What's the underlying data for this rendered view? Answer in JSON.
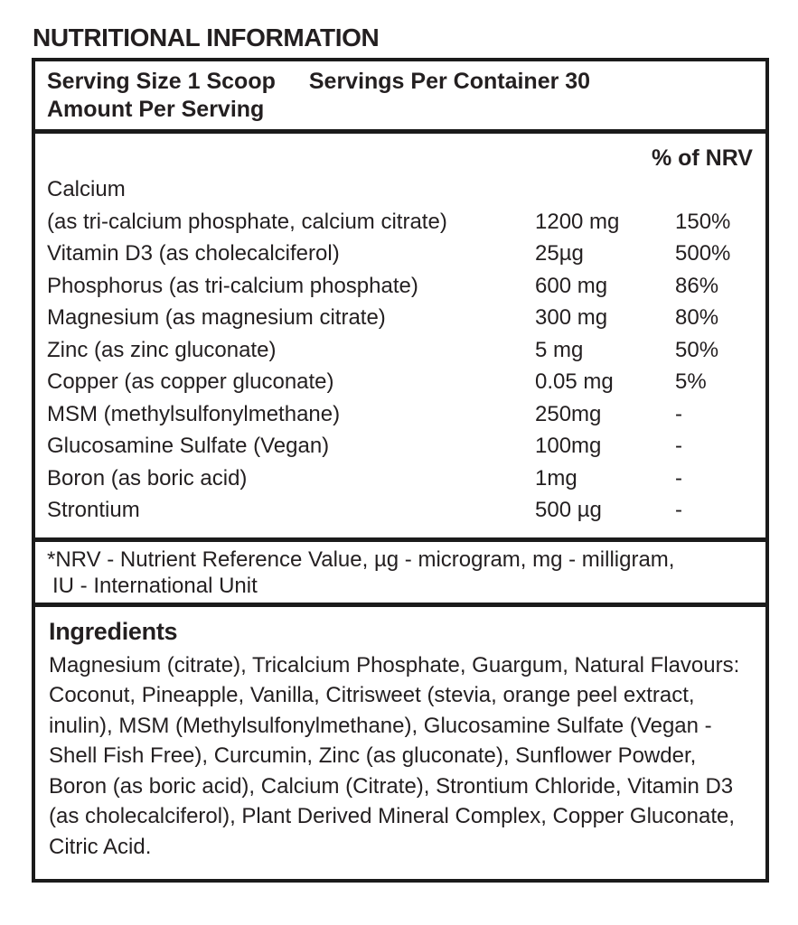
{
  "title": "NUTRITIONAL INFORMATION",
  "panel": {
    "serving_size": "Serving Size 1 Scoop",
    "servings_per_container": "Servings Per Container 30",
    "amount_per_serving": "Amount Per Serving",
    "nrv_header": "% of NRV",
    "rows": [
      {
        "name": "Calcium",
        "sub": "(as tri-calcium phosphate, calcium citrate)",
        "amount": "1200 mg",
        "nrv": "150%"
      },
      {
        "name": "Vitamin D3 (as cholecalciferol)",
        "amount": "25µg",
        "nrv": "500%"
      },
      {
        "name": "Phosphorus (as tri-calcium phosphate)",
        "amount": "600 mg",
        "nrv": "86%"
      },
      {
        "name": "Magnesium (as magnesium citrate)",
        "amount": "300 mg",
        "nrv": "80%"
      },
      {
        "name": "Zinc (as zinc gluconate)",
        "amount": "5 mg",
        "nrv": "50%"
      },
      {
        "name": "Copper (as copper gluconate)",
        "amount": "0.05 mg",
        "nrv": "5%"
      },
      {
        "name": "MSM (methylsulfonylmethane)",
        "amount": "250mg",
        "nrv": "-"
      },
      {
        "name": "Glucosamine Sulfate (Vegan)",
        "amount": "100mg",
        "nrv": "-"
      },
      {
        "name": "Boron (as boric acid)",
        "amount": "1mg",
        "nrv": "-"
      },
      {
        "name": "Strontium",
        "amount": "500 µg",
        "nrv": "-"
      }
    ],
    "footnote_line1": "*NRV - Nutrient Reference Value, µg - microgram, mg - milligram,",
    "footnote_line2": "IU -  International Unit",
    "ingredients": {
      "heading": "Ingredients",
      "text": "Magnesium (citrate), Tricalcium Phosphate, Guargum, Natural Flavours: Coconut, Pineapple, Vanilla, Citrisweet (stevia, orange peel extract, inulin), MSM (Methylsulfonylmethane), Glucosamine Sulfate (Vegan - Shell Fish Free), Curcumin,  Zinc (as gluconate), Sunflower Powder, Boron (as boric acid), Calcium (Citrate), Strontium Chloride, Vitamin D3 (as cholecalciferol), Plant Derived Mineral Complex, Copper Gluconate, Citric Acid."
    }
  },
  "colors": {
    "text": "#231f20",
    "border": "#1b1b1b",
    "background": "#ffffff"
  }
}
